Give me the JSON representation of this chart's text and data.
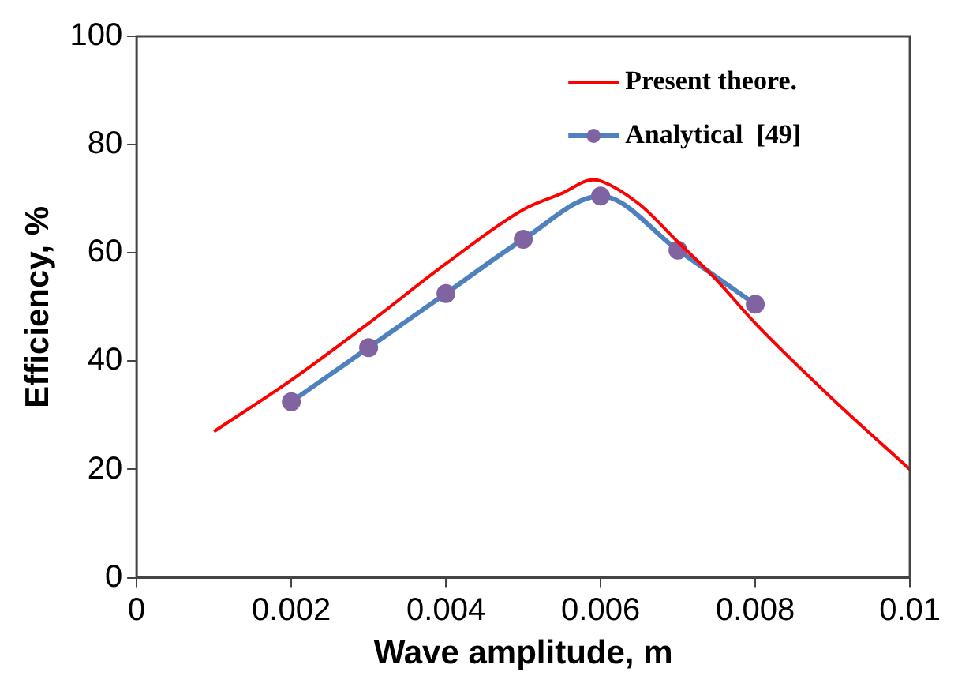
{
  "chart_data": {
    "type": "line",
    "xlabel": "Wave amplitude, m",
    "ylabel": "Efficiency, %",
    "xlim": [
      0,
      0.01
    ],
    "xticks": [
      0,
      0.002,
      0.004,
      0.006,
      0.008,
      0.01
    ],
    "ylim": [
      0,
      100
    ],
    "yticks": [
      0,
      20,
      40,
      60,
      80,
      100
    ],
    "grid": false,
    "legend": "top right",
    "series": [
      {
        "name": "Present theore.",
        "color": "#ff0000",
        "marker": "none",
        "x": [
          0.001,
          0.002,
          0.003,
          0.004,
          0.005,
          0.0055,
          0.0059,
          0.006,
          0.0065,
          0.007,
          0.0075,
          0.008,
          0.009,
          0.01
        ],
        "values": [
          27,
          36.5,
          47,
          58,
          68,
          71,
          73.5,
          73.3,
          69,
          62,
          55,
          47,
          33,
          20
        ]
      },
      {
        "name": "Analytical  [49]",
        "color": "#4f81bd",
        "marker": "circle",
        "x": [
          0.002,
          0.003,
          0.004,
          0.005,
          0.006,
          0.007,
          0.008
        ],
        "values": [
          32.5,
          42.5,
          52.5,
          62.5,
          70.5,
          60.5,
          50.5
        ]
      }
    ]
  }
}
